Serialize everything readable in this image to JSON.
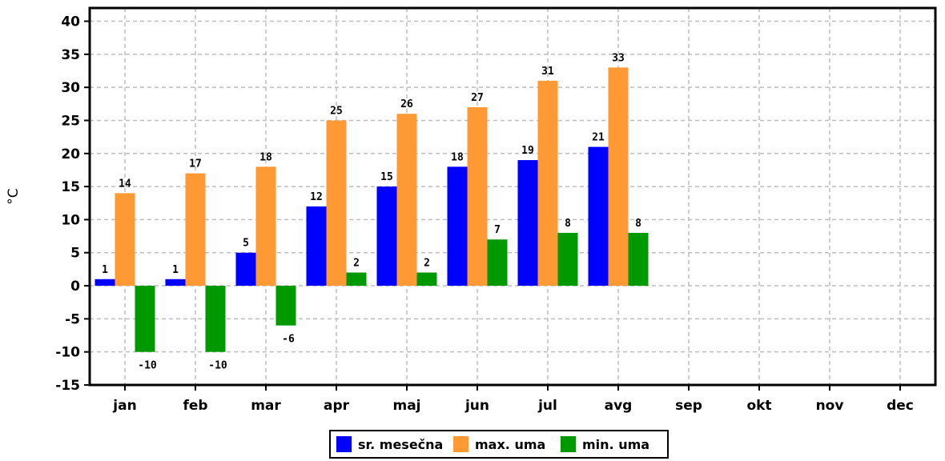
{
  "chart_data": {
    "type": "bar",
    "ylabel": "°C",
    "xlabel": "",
    "ylim": [
      -15,
      42
    ],
    "yticks": [
      -15,
      -10,
      -5,
      0,
      5,
      10,
      15,
      20,
      25,
      30,
      35,
      40
    ],
    "grid": true,
    "legend": "bottom",
    "categories": [
      "jan",
      "feb",
      "mar",
      "apr",
      "maj",
      "jun",
      "jul",
      "avg",
      "sep",
      "okt",
      "nov",
      "dec"
    ],
    "series": [
      {
        "name": "sr. mesečna",
        "color": "#0000ff",
        "values": [
          1,
          1,
          5,
          12,
          15,
          18,
          19,
          21,
          null,
          null,
          null,
          null
        ]
      },
      {
        "name": "max. uma",
        "color": "#ff9933",
        "values": [
          14,
          17,
          18,
          25,
          26,
          27,
          31,
          33,
          null,
          null,
          null,
          null
        ]
      },
      {
        "name": "min. uma",
        "color": "#009900",
        "values": [
          -10,
          -10,
          -6,
          2,
          2,
          7,
          8,
          8,
          null,
          null,
          null,
          null
        ]
      }
    ]
  }
}
